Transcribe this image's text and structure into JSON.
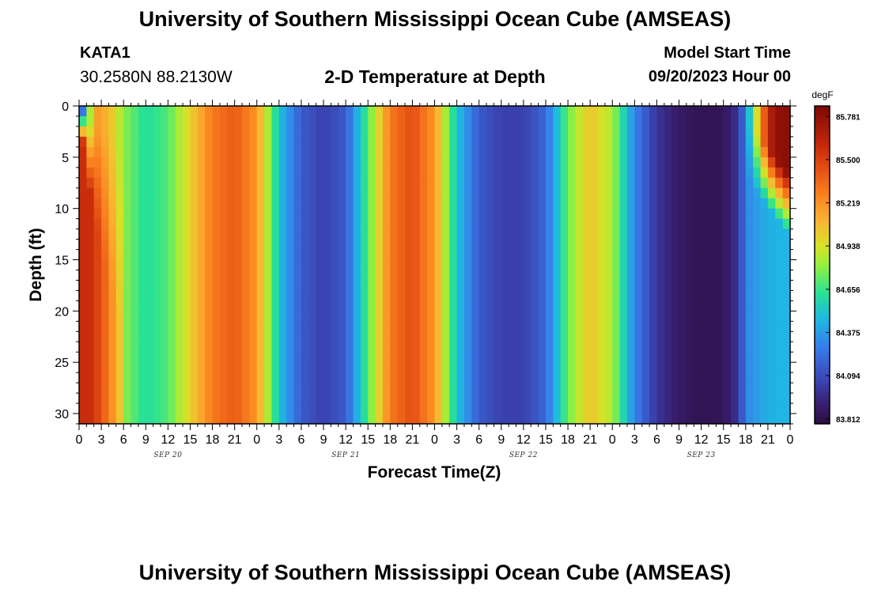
{
  "header": {
    "title": "University of Southern Mississippi Ocean Cube (AMSEAS)",
    "station": "KATA1",
    "coordinates": "30.2580N  88.2130W",
    "plot_title": "2-D Temperature at Depth",
    "start_label": "Model Start Time",
    "start_value": "09/20/2023 Hour 00"
  },
  "footer": {
    "title": "University of Southern Mississippi Ocean Cube (AMSEAS)"
  },
  "chart_data": {
    "type": "heatmap",
    "title": "2-D Temperature at Depth",
    "xlabel": "Forecast Time(Z)",
    "ylabel": "Depth (ft)",
    "x_hours_range": [
      0,
      96
    ],
    "ylim": [
      0,
      31
    ],
    "y_inverted": true,
    "x_tick_labels": [
      "0",
      "3",
      "6",
      "9",
      "12",
      "15",
      "18",
      "21",
      "0",
      "3",
      "6",
      "9",
      "12",
      "15",
      "18",
      "21",
      "0",
      "3",
      "6",
      "9",
      "12",
      "15",
      "18",
      "21",
      "0",
      "3",
      "6",
      "9",
      "12",
      "15",
      "18",
      "21",
      "0"
    ],
    "x_tick_hours": [
      0,
      3,
      6,
      9,
      12,
      15,
      18,
      21,
      24,
      27,
      30,
      33,
      36,
      39,
      42,
      45,
      48,
      51,
      54,
      57,
      60,
      63,
      66,
      69,
      72,
      75,
      78,
      81,
      84,
      87,
      90,
      93,
      96
    ],
    "day_labels": [
      "SEP 20",
      "SEP 21",
      "SEP 22",
      "SEP 23"
    ],
    "day_label_hours": [
      12,
      36,
      60,
      84
    ],
    "y_ticks": [
      0,
      5,
      10,
      15,
      20,
      25,
      30
    ],
    "colorbar": {
      "unit": "degF",
      "min": 83.78,
      "max": 85.85,
      "tick_values": [
        85.781,
        85.5,
        85.219,
        84.938,
        84.656,
        84.375,
        84.094,
        83.812
      ],
      "tick_labels": [
        "85.781",
        "85.500",
        "85.219",
        "84.938",
        "84.656",
        "84.375",
        "84.094",
        "83.812"
      ]
    },
    "surface_temperature_profile": {
      "hours": [
        0,
        0.5,
        1,
        2,
        4,
        6,
        9,
        12,
        15,
        18,
        21,
        24,
        27,
        30,
        33,
        36,
        39,
        42,
        45,
        48,
        51,
        54,
        57,
        60,
        63,
        66,
        69,
        72,
        75,
        78,
        81,
        84,
        87,
        89,
        90,
        91,
        92,
        93,
        94,
        96
      ],
      "values": [
        84.2,
        84.25,
        84.5,
        85.2,
        85.1,
        84.8,
        84.6,
        84.7,
        85.0,
        85.3,
        85.4,
        85.2,
        84.5,
        84.15,
        84.05,
        84.15,
        84.7,
        85.3,
        85.45,
        85.2,
        84.5,
        84.15,
        84.05,
        84.05,
        84.2,
        84.75,
        85.05,
        84.85,
        84.3,
        84.0,
        83.88,
        83.83,
        83.85,
        84.0,
        84.3,
        84.7,
        85.2,
        85.6,
        85.78,
        85.8
      ]
    },
    "deep_temperature_profile": {
      "hours": [
        0,
        1,
        2,
        4,
        6,
        9,
        12,
        15,
        18,
        21,
        24,
        27,
        30,
        33,
        36,
        39,
        42,
        45,
        48,
        51,
        54,
        57,
        60,
        63,
        66,
        69,
        72,
        75,
        78,
        81,
        84,
        87,
        89,
        90,
        92,
        94,
        96
      ],
      "values": [
        85.55,
        85.6,
        85.55,
        85.3,
        84.95,
        84.85,
        84.9,
        85.05,
        85.3,
        85.4,
        85.2,
        84.5,
        84.15,
        84.05,
        84.15,
        84.7,
        85.3,
        85.45,
        85.2,
        84.5,
        84.15,
        84.05,
        84.05,
        84.2,
        84.75,
        85.05,
        84.85,
        84.3,
        84.0,
        83.88,
        83.83,
        83.85,
        84.0,
        84.3,
        84.4,
        84.45,
        84.45
      ]
    }
  }
}
